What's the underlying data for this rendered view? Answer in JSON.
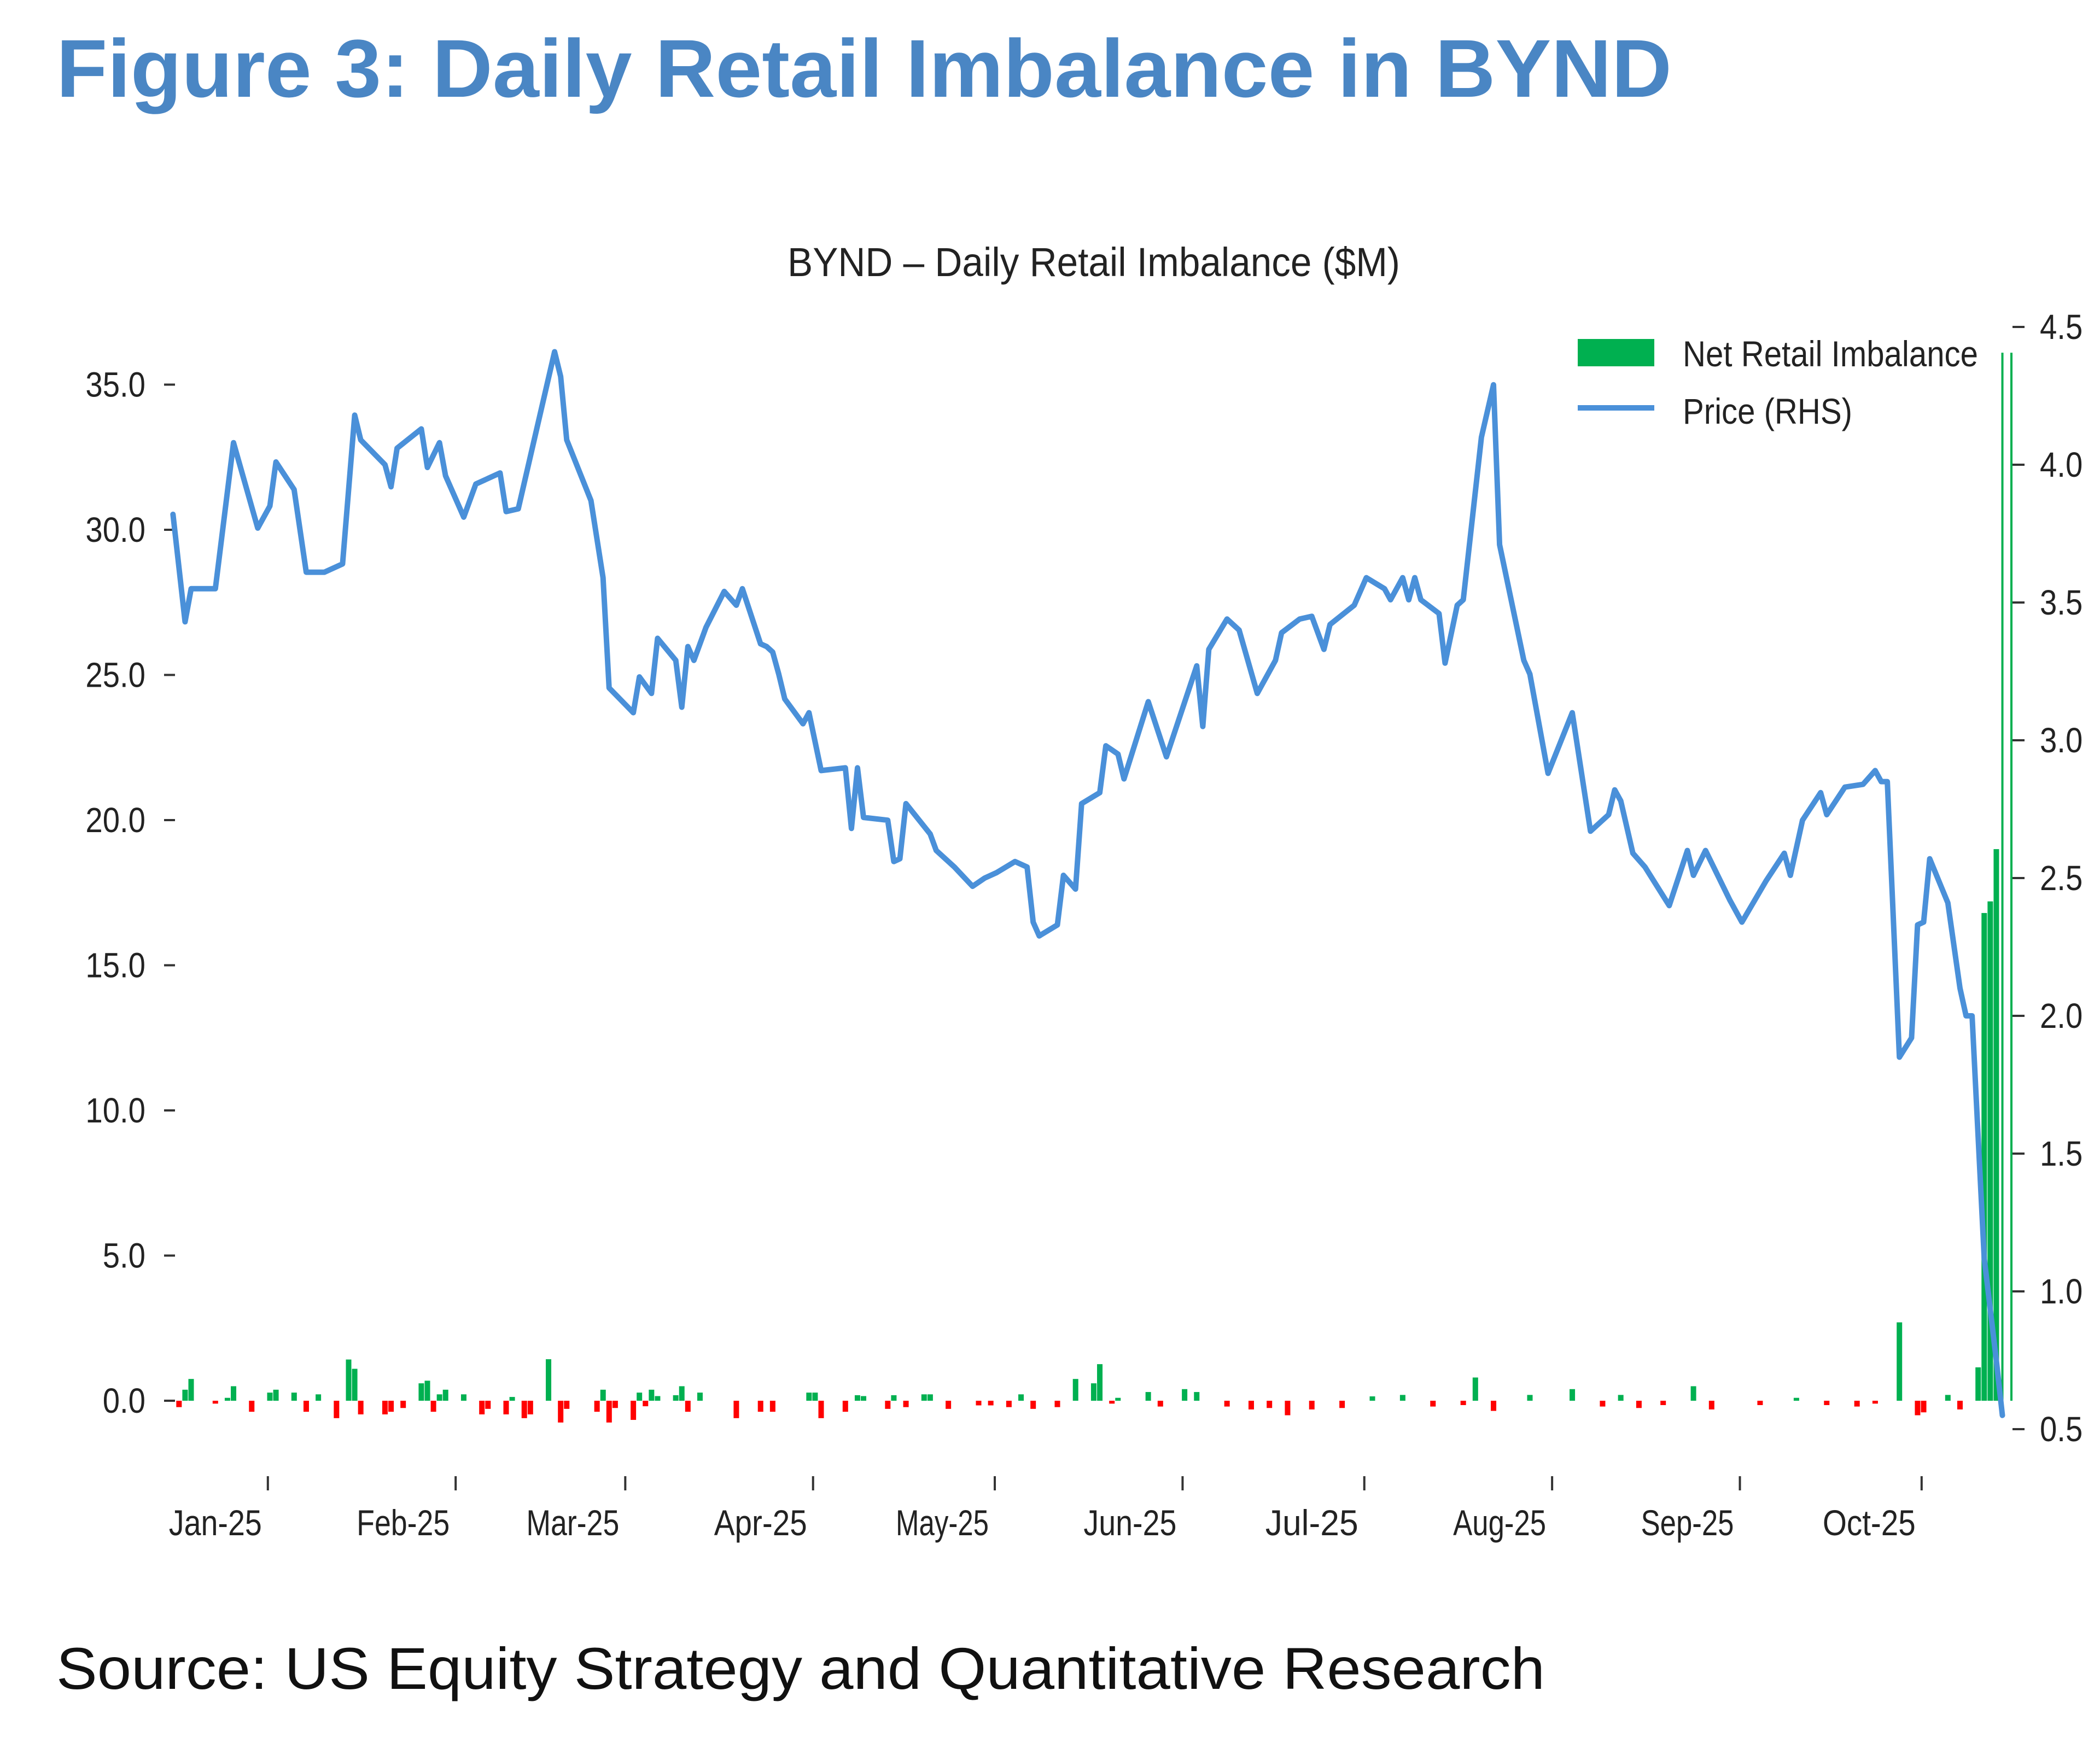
{
  "figure_title": "Figure 3: Daily Retail Imbalance in BYND",
  "source": "Source: US Equity Strategy and Quantitative Research",
  "chart_data": {
    "type": "bar+line",
    "title": "BYND – Daily Retail Imbalance ($M)",
    "xlabel": "",
    "ylabel_left": "",
    "ylabel_right": "",
    "grid": false,
    "legend_position": "top-right",
    "legend": [
      {
        "label": "Net Retail Imbalance",
        "kind": "bar",
        "color": "#00b050"
      },
      {
        "label": "Price (RHS)",
        "kind": "line",
        "color": "#4a90d9"
      }
    ],
    "colors": {
      "positive": "#00b050",
      "negative": "#ff0000",
      "price": "#4a90d9",
      "title": "#4a86c4"
    },
    "x_ticks": [
      {
        "date": "2025-01-01",
        "label": "Jan-25"
      },
      {
        "date": "2025-02-01",
        "label": "Feb-25"
      },
      {
        "date": "2025-03-01",
        "label": "Mar-25"
      },
      {
        "date": "2025-04-01",
        "label": "Apr-25"
      },
      {
        "date": "2025-05-01",
        "label": "May-25"
      },
      {
        "date": "2025-06-01",
        "label": "Jun-25"
      },
      {
        "date": "2025-07-01",
        "label": "Jul-25"
      },
      {
        "date": "2025-08-01",
        "label": "Aug-25"
      },
      {
        "date": "2025-09-01",
        "label": "Sep-25"
      },
      {
        "date": "2025-10-01",
        "label": "Oct-25"
      }
    ],
    "y_left_ticks": [
      "0.0",
      "5.0",
      "10.0",
      "15.0",
      "20.0",
      "25.0",
      "30.0",
      "35.0"
    ],
    "y_right_ticks": [
      "0.5",
      "1.0",
      "1.5",
      "2.0",
      "2.5",
      "3.0",
      "3.5",
      "4.0",
      "4.5"
    ],
    "y_left_range": [
      -2.2,
      37
    ],
    "y_right_range": [
      0.4,
      4.6
    ],
    "imbalance": [
      [
        "2024-12-26",
        -0.22
      ],
      [
        "2024-12-27",
        0.38
      ],
      [
        "2024-12-28",
        0.75
      ],
      [
        "2025-01-01",
        -0.1
      ],
      [
        "2025-01-03",
        0.1
      ],
      [
        "2025-01-04",
        0.5
      ],
      [
        "2025-01-07",
        -0.38
      ],
      [
        "2025-01-10",
        0.28
      ],
      [
        "2025-01-11",
        0.38
      ],
      [
        "2025-01-14",
        0.28
      ],
      [
        "2025-01-16",
        -0.38
      ],
      [
        "2025-01-18",
        0.22
      ],
      [
        "2025-01-21",
        -0.6
      ],
      [
        "2025-01-23",
        1.42
      ],
      [
        "2025-01-24",
        1.1
      ],
      [
        "2025-01-25",
        -0.47
      ],
      [
        "2025-01-29",
        -0.47
      ],
      [
        "2025-01-30",
        -0.38
      ],
      [
        "2025-02-01",
        -0.25
      ],
      [
        "2025-02-04",
        0.6
      ],
      [
        "2025-02-05",
        0.69
      ],
      [
        "2025-02-06",
        -0.38
      ],
      [
        "2025-02-07",
        0.22
      ],
      [
        "2025-02-08",
        0.38
      ],
      [
        "2025-02-11",
        0.22
      ],
      [
        "2025-02-14",
        -0.47
      ],
      [
        "2025-02-15",
        -0.28
      ],
      [
        "2025-02-18",
        -0.47
      ],
      [
        "2025-02-19",
        0.13
      ],
      [
        "2025-02-21",
        -0.6
      ],
      [
        "2025-02-22",
        -0.47
      ],
      [
        "2025-02-25",
        1.43
      ],
      [
        "2025-02-27",
        -0.75
      ],
      [
        "2025-02-28",
        -0.28
      ],
      [
        "2025-03-05",
        -0.38
      ],
      [
        "2025-03-06",
        0.38
      ],
      [
        "2025-03-07",
        -0.75
      ],
      [
        "2025-03-08",
        -0.25
      ],
      [
        "2025-03-11",
        -0.66
      ],
      [
        "2025-03-12",
        0.28
      ],
      [
        "2025-03-13",
        -0.19
      ],
      [
        "2025-03-14",
        0.38
      ],
      [
        "2025-03-15",
        0.16
      ],
      [
        "2025-03-18",
        0.19
      ],
      [
        "2025-03-19",
        0.5
      ],
      [
        "2025-03-20",
        -0.38
      ],
      [
        "2025-03-22",
        0.28
      ],
      [
        "2025-03-28",
        -0.6
      ],
      [
        "2025-04-01",
        -0.38
      ],
      [
        "2025-04-03",
        -0.38
      ],
      [
        "2025-04-09",
        0.28
      ],
      [
        "2025-04-10",
        0.28
      ],
      [
        "2025-04-11",
        -0.6
      ],
      [
        "2025-04-15",
        -0.38
      ],
      [
        "2025-04-17",
        0.19
      ],
      [
        "2025-04-18",
        0.16
      ],
      [
        "2025-04-22",
        -0.28
      ],
      [
        "2025-04-23",
        0.19
      ],
      [
        "2025-04-25",
        -0.22
      ],
      [
        "2025-04-28",
        0.22
      ],
      [
        "2025-04-29",
        0.22
      ],
      [
        "2025-05-02",
        -0.28
      ],
      [
        "2025-05-07",
        -0.16
      ],
      [
        "2025-05-09",
        -0.16
      ],
      [
        "2025-05-12",
        -0.22
      ],
      [
        "2025-05-14",
        0.22
      ],
      [
        "2025-05-16",
        -0.28
      ],
      [
        "2025-05-20",
        -0.22
      ],
      [
        "2025-05-23",
        0.75
      ],
      [
        "2025-05-26",
        0.6
      ],
      [
        "2025-05-27",
        1.26
      ],
      [
        "2025-05-29",
        -0.1
      ],
      [
        "2025-05-30",
        0.1
      ],
      [
        "2025-06-04",
        0.3
      ],
      [
        "2025-06-06",
        -0.2
      ],
      [
        "2025-06-10",
        0.4
      ],
      [
        "2025-06-12",
        0.3
      ],
      [
        "2025-06-17",
        -0.2
      ],
      [
        "2025-06-21",
        -0.3
      ],
      [
        "2025-06-24",
        -0.25
      ],
      [
        "2025-06-27",
        -0.5
      ],
      [
        "2025-07-01",
        -0.3
      ],
      [
        "2025-07-06",
        -0.25
      ],
      [
        "2025-07-11",
        0.15
      ],
      [
        "2025-07-16",
        0.2
      ],
      [
        "2025-07-21",
        -0.2
      ],
      [
        "2025-07-26",
        -0.15
      ],
      [
        "2025-07-28",
        0.8
      ],
      [
        "2025-07-31",
        -0.35
      ],
      [
        "2025-08-06",
        0.2
      ],
      [
        "2025-08-13",
        0.4
      ],
      [
        "2025-08-18",
        -0.2
      ],
      [
        "2025-08-21",
        0.2
      ],
      [
        "2025-08-24",
        -0.25
      ],
      [
        "2025-08-28",
        -0.15
      ],
      [
        "2025-09-02",
        0.5
      ],
      [
        "2025-09-05",
        -0.3
      ],
      [
        "2025-09-13",
        -0.15
      ],
      [
        "2025-09-19",
        0.1
      ],
      [
        "2025-09-24",
        -0.15
      ],
      [
        "2025-09-29",
        -0.2
      ],
      [
        "2025-10-02",
        -0.1
      ],
      [
        "2025-10-06",
        2.7
      ],
      [
        "2025-10-09",
        -0.5
      ],
      [
        "2025-10-10",
        -0.4
      ],
      [
        "2025-10-14",
        0.2
      ],
      [
        "2025-10-16",
        -0.3
      ],
      [
        "2025-10-19",
        1.15
      ],
      [
        "2025-10-20",
        16.8
      ],
      [
        "2025-10-21",
        17.2
      ],
      [
        "2025-10-22",
        19.0
      ],
      [
        "2025-10-23",
        36.1
      ]
    ],
    "price": [
      [
        "2024-12-25",
        3.82
      ],
      [
        "2024-12-27",
        3.43
      ],
      [
        "2024-12-28",
        3.55
      ],
      [
        "2025-01-01",
        3.55
      ],
      [
        "2025-01-04",
        4.08
      ],
      [
        "2025-01-08",
        3.77
      ],
      [
        "2025-01-10",
        3.85
      ],
      [
        "2025-01-11",
        4.01
      ],
      [
        "2025-01-14",
        3.91
      ],
      [
        "2025-01-16",
        3.61
      ],
      [
        "2025-01-19",
        3.61
      ],
      [
        "2025-01-22",
        3.64
      ],
      [
        "2025-01-24",
        4.18
      ],
      [
        "2025-01-25",
        4.09
      ],
      [
        "2025-01-29",
        4.0
      ],
      [
        "2025-01-30",
        3.92
      ],
      [
        "2025-01-31",
        4.06
      ],
      [
        "2025-02-04",
        4.13
      ],
      [
        "2025-02-05",
        3.99
      ],
      [
        "2025-02-07",
        4.08
      ],
      [
        "2025-02-08",
        3.96
      ],
      [
        "2025-02-11",
        3.81
      ],
      [
        "2025-02-13",
        3.93
      ],
      [
        "2025-02-17",
        3.97
      ],
      [
        "2025-02-18",
        3.83
      ],
      [
        "2025-02-20",
        3.84
      ],
      [
        "2025-02-22",
        4.03
      ],
      [
        "2025-02-26",
        4.41
      ],
      [
        "2025-02-27",
        4.32
      ],
      [
        "2025-02-28",
        4.09
      ],
      [
        "2025-03-04",
        3.87
      ],
      [
        "2025-03-06",
        3.59
      ],
      [
        "2025-03-07",
        3.19
      ],
      [
        "2025-03-11",
        3.1
      ],
      [
        "2025-03-12",
        3.23
      ],
      [
        "2025-03-14",
        3.17
      ],
      [
        "2025-03-15",
        3.37
      ],
      [
        "2025-03-18",
        3.29
      ],
      [
        "2025-03-19",
        3.12
      ],
      [
        "2025-03-20",
        3.34
      ],
      [
        "2025-03-21",
        3.29
      ],
      [
        "2025-03-23",
        3.41
      ],
      [
        "2025-03-26",
        3.54
      ],
      [
        "2025-03-28",
        3.49
      ],
      [
        "2025-03-29",
        3.55
      ],
      [
        "2025-04-01",
        3.35
      ],
      [
        "2025-04-02",
        3.34
      ],
      [
        "2025-04-03",
        3.32
      ],
      [
        "2025-04-04",
        3.24
      ],
      [
        "2025-04-05",
        3.15
      ],
      [
        "2025-04-08",
        3.06
      ],
      [
        "2025-04-09",
        3.1
      ],
      [
        "2025-04-11",
        2.89
      ],
      [
        "2025-04-15",
        2.9
      ],
      [
        "2025-04-16",
        2.68
      ],
      [
        "2025-04-17",
        2.9
      ],
      [
        "2025-04-18",
        2.72
      ],
      [
        "2025-04-22",
        2.71
      ],
      [
        "2025-04-23",
        2.56
      ],
      [
        "2025-04-24",
        2.57
      ],
      [
        "2025-04-25",
        2.77
      ],
      [
        "2025-04-29",
        2.66
      ],
      [
        "2025-04-30",
        2.6
      ],
      [
        "2025-05-03",
        2.54
      ],
      [
        "2025-05-06",
        2.47
      ],
      [
        "2025-05-08",
        2.5
      ],
      [
        "2025-05-10",
        2.52
      ],
      [
        "2025-05-13",
        2.56
      ],
      [
        "2025-05-15",
        2.54
      ],
      [
        "2025-05-16",
        2.34
      ],
      [
        "2025-05-17",
        2.29
      ],
      [
        "2025-05-20",
        2.33
      ],
      [
        "2025-05-21",
        2.51
      ],
      [
        "2025-05-23",
        2.46
      ],
      [
        "2025-05-24",
        2.77
      ],
      [
        "2025-05-27",
        2.81
      ],
      [
        "2025-05-28",
        2.98
      ],
      [
        "2025-05-30",
        2.95
      ],
      [
        "2025-05-31",
        2.86
      ],
      [
        "2025-06-04",
        3.14
      ],
      [
        "2025-06-07",
        2.94
      ],
      [
        "2025-06-12",
        3.27
      ],
      [
        "2025-06-13",
        3.05
      ],
      [
        "2025-06-14",
        3.33
      ],
      [
        "2025-06-17",
        3.44
      ],
      [
        "2025-06-19",
        3.4
      ],
      [
        "2025-06-22",
        3.17
      ],
      [
        "2025-06-25",
        3.29
      ],
      [
        "2025-06-26",
        3.39
      ],
      [
        "2025-06-29",
        3.44
      ],
      [
        "2025-07-01",
        3.45
      ],
      [
        "2025-07-03",
        3.33
      ],
      [
        "2025-07-04",
        3.42
      ],
      [
        "2025-07-08",
        3.49
      ],
      [
        "2025-07-10",
        3.59
      ],
      [
        "2025-07-13",
        3.55
      ],
      [
        "2025-07-14",
        3.51
      ],
      [
        "2025-07-16",
        3.59
      ],
      [
        "2025-07-17",
        3.51
      ],
      [
        "2025-07-18",
        3.59
      ],
      [
        "2025-07-19",
        3.51
      ],
      [
        "2025-07-22",
        3.46
      ],
      [
        "2025-07-23",
        3.28
      ],
      [
        "2025-07-25",
        3.49
      ],
      [
        "2025-07-26",
        3.51
      ],
      [
        "2025-07-29",
        4.1
      ],
      [
        "2025-07-31",
        4.29
      ],
      [
        "2025-08-01",
        3.71
      ],
      [
        "2025-08-05",
        3.29
      ],
      [
        "2025-08-06",
        3.24
      ],
      [
        "2025-08-09",
        2.88
      ],
      [
        "2025-08-13",
        3.1
      ],
      [
        "2025-08-16",
        2.67
      ],
      [
        "2025-08-19",
        2.73
      ],
      [
        "2025-08-20",
        2.82
      ],
      [
        "2025-08-21",
        2.78
      ],
      [
        "2025-08-23",
        2.59
      ],
      [
        "2025-08-25",
        2.54
      ],
      [
        "2025-08-29",
        2.4
      ],
      [
        "2025-09-01",
        2.6
      ],
      [
        "2025-09-02",
        2.51
      ],
      [
        "2025-09-04",
        2.6
      ],
      [
        "2025-09-08",
        2.42
      ],
      [
        "2025-09-10",
        2.34
      ],
      [
        "2025-09-14",
        2.49
      ],
      [
        "2025-09-17",
        2.59
      ],
      [
        "2025-09-18",
        2.51
      ],
      [
        "2025-09-20",
        2.71
      ],
      [
        "2025-09-23",
        2.81
      ],
      [
        "2025-09-24",
        2.73
      ],
      [
        "2025-09-27",
        2.83
      ],
      [
        "2025-09-30",
        2.84
      ],
      [
        "2025-10-02",
        2.89
      ],
      [
        "2025-10-03",
        2.85
      ],
      [
        "2025-10-04",
        2.85
      ],
      [
        "2025-10-06",
        1.85
      ],
      [
        "2025-10-08",
        1.92
      ],
      [
        "2025-10-09",
        2.33
      ],
      [
        "2025-10-10",
        2.34
      ],
      [
        "2025-10-11",
        2.57
      ],
      [
        "2025-10-14",
        2.41
      ],
      [
        "2025-10-16",
        2.1
      ],
      [
        "2025-10-17",
        2.0
      ],
      [
        "2025-10-18",
        2.0
      ],
      [
        "2025-10-20",
        1.12
      ],
      [
        "2025-10-22",
        0.75
      ],
      [
        "2025-10-23",
        0.55
      ]
    ]
  }
}
